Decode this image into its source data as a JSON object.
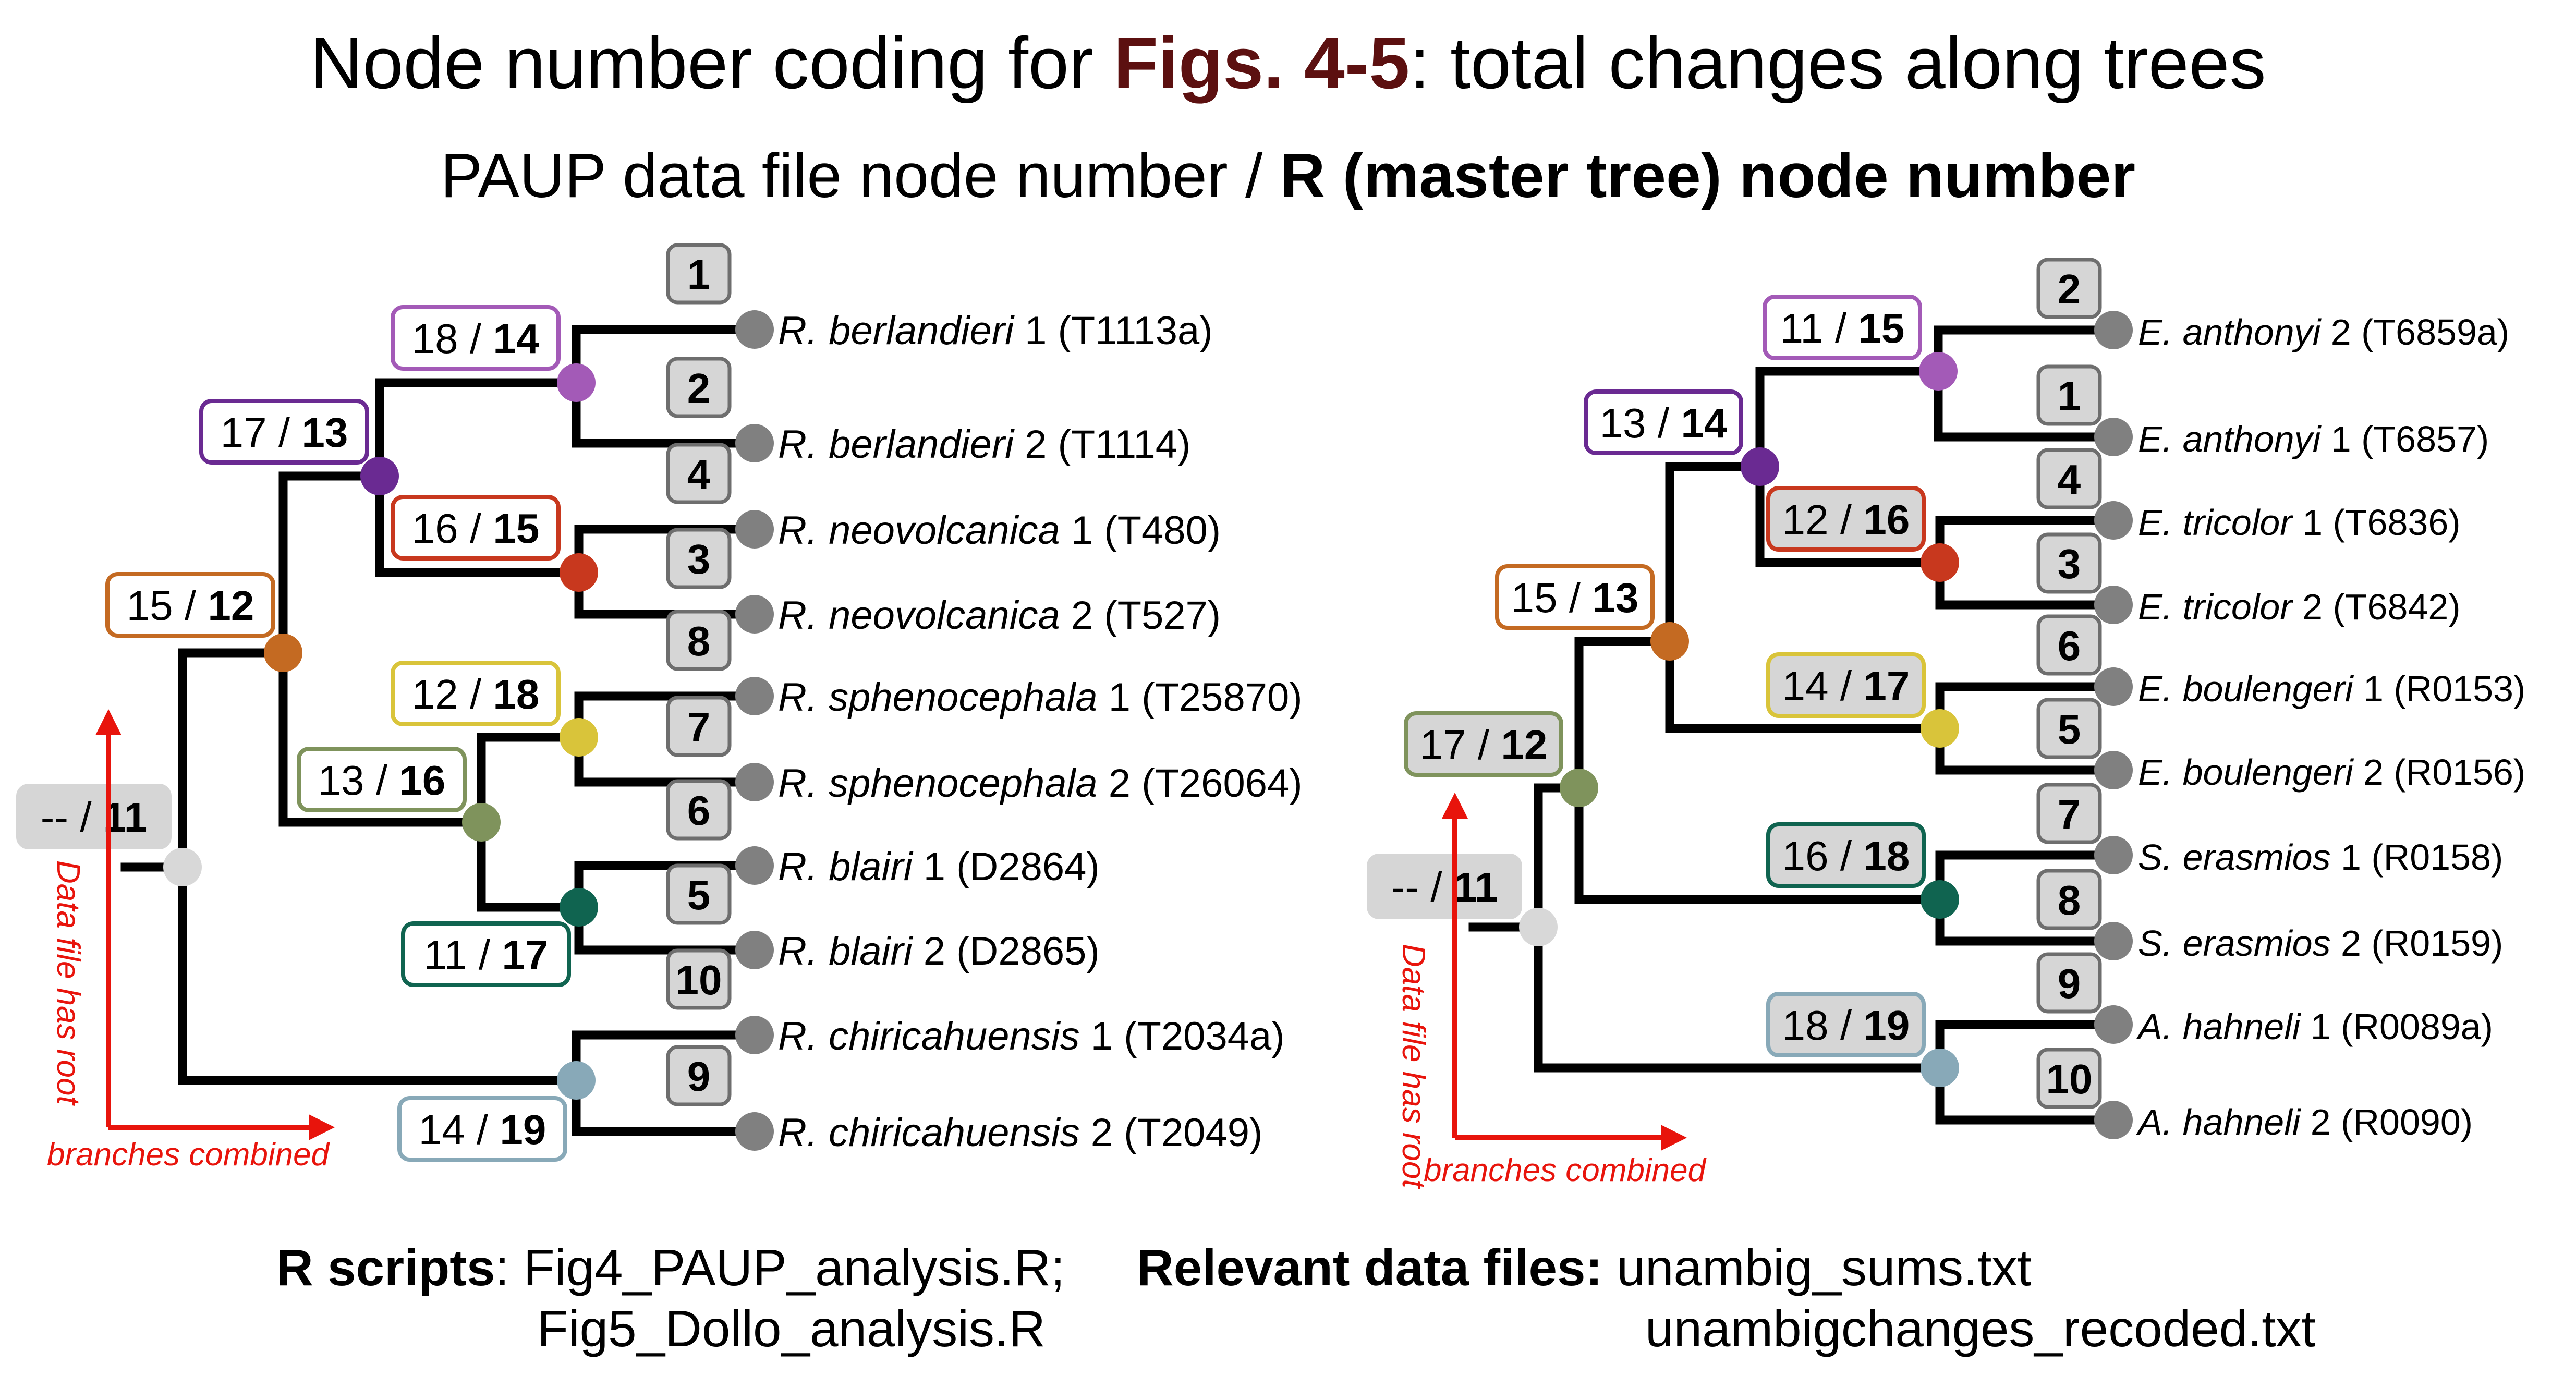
{
  "title": {
    "prefix": "Node number coding for ",
    "highlight": "Figs. 4-5",
    "suffix": ": total changes along trees"
  },
  "subtitle": {
    "prefix": "PAUP data file node number / ",
    "bold": "R (master tree) node number"
  },
  "colors": {
    "orange": "#c46a22",
    "purple": "#6a2a92",
    "lavender": "#a35ab7",
    "red": "#c8381e",
    "yellow": "#d9c43a",
    "olive": "#7f935c",
    "teal": "#106450",
    "blue": "#88a9b8",
    "root": "#d8d8d8",
    "tip": "#808080",
    "arrow": "#e8140c",
    "label_fill": "#d6d6d6"
  },
  "left_tree": {
    "taxa": [
      {
        "tip": "1",
        "genus": "R. berlandieri",
        "suffix": " 1 (T1113a)"
      },
      {
        "tip": "2",
        "genus": "R. berlandieri",
        "suffix": " 2 (T1114)"
      },
      {
        "tip": "4",
        "genus": "R. neovolcanica",
        "suffix": " 1 (T480)"
      },
      {
        "tip": "3",
        "genus": "R. neovolcanica",
        "suffix": " 2 (T527)"
      },
      {
        "tip": "8",
        "genus": "R. sphenocephala",
        "suffix": " 1 (T25870)"
      },
      {
        "tip": "7",
        "genus": "R. sphenocephala",
        "suffix": " 2 (T26064)"
      },
      {
        "tip": "6",
        "genus": "R. blairi",
        "suffix": " 1 (D2864)"
      },
      {
        "tip": "5",
        "genus": "R. blairi",
        "suffix": " 2 (D2865)"
      },
      {
        "tip": "10",
        "genus": "R. chiricahuensis",
        "suffix": " 1 (T2034a)"
      },
      {
        "tip": "9",
        "genus": "R. chiricahuensis",
        "suffix": " 2 (T2049)"
      }
    ],
    "nodes": [
      {
        "paup": "18",
        "r": "14"
      },
      {
        "paup": "17",
        "r": "13"
      },
      {
        "paup": "16",
        "r": "15"
      },
      {
        "paup": "15",
        "r": "12"
      },
      {
        "paup": "12",
        "r": "18"
      },
      {
        "paup": "13",
        "r": "16"
      },
      {
        "paup": "11",
        "r": "17"
      },
      {
        "paup": "14",
        "r": "19"
      },
      {
        "paup": "--",
        "r": "11"
      }
    ],
    "note_vertical": "Data file has root",
    "note_horizontal": "branches combined"
  },
  "right_tree": {
    "taxa": [
      {
        "tip": "2",
        "genus": "E. anthonyi",
        "suffix": " 2 (T6859a)"
      },
      {
        "tip": "1",
        "genus": "E. anthonyi",
        "suffix": " 1 (T6857)"
      },
      {
        "tip": "4",
        "genus": "E. tricolor",
        "suffix": " 1 (T6836)"
      },
      {
        "tip": "3",
        "genus": "E. tricolor",
        "suffix": " 2 (T6842)"
      },
      {
        "tip": "6",
        "genus": "E. boulengeri",
        "suffix": " 1 (R0153)"
      },
      {
        "tip": "5",
        "genus": "E. boulengeri",
        "suffix": " 2 (R0156)"
      },
      {
        "tip": "7",
        "genus": "S. erasmios",
        "suffix": " 1 (R0158)"
      },
      {
        "tip": "8",
        "genus": "S. erasmios",
        "suffix": " 2 (R0159)"
      },
      {
        "tip": "9",
        "genus": "A. hahneli",
        "suffix": " 1 (R0089a)"
      },
      {
        "tip": "10",
        "genus": "A. hahneli",
        "suffix": " 2 (R0090)"
      }
    ],
    "nodes": [
      {
        "paup": "11",
        "r": "15"
      },
      {
        "paup": "13",
        "r": "14"
      },
      {
        "paup": "12",
        "r": "16"
      },
      {
        "paup": "15",
        "r": "13"
      },
      {
        "paup": "14",
        "r": "17"
      },
      {
        "paup": "17",
        "r": "12"
      },
      {
        "paup": "16",
        "r": "18"
      },
      {
        "paup": "18",
        "r": "19"
      },
      {
        "paup": "--",
        "r": "11"
      }
    ],
    "note_vertical": "Data file has root",
    "note_horizontal": "branches combined"
  },
  "footer": {
    "scripts_label": "R scripts",
    "scripts_line1": ": Fig4_PAUP_analysis.R;",
    "scripts_line2": "Fig5_Dollo_analysis.R",
    "data_label": "Relevant data files:",
    "data_line1": "unambig_sums.txt",
    "data_line2": "unambigchanges_recoded.txt"
  }
}
